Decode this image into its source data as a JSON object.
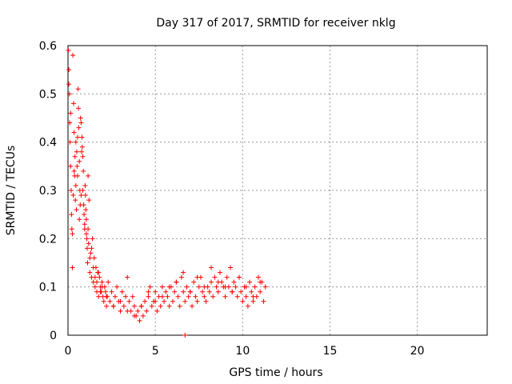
{
  "chart_data": {
    "type": "scatter",
    "title": "Day 317 of 2017, SRMTID for receiver nklg",
    "xlabel": "GPS time / hours",
    "ylabel": "SRMTID / TECUs",
    "xlim": [
      0,
      24
    ],
    "ylim": [
      0,
      0.6
    ],
    "xticks": [
      0,
      5,
      10,
      15,
      20
    ],
    "xtick_labels": [
      "0",
      "5",
      "10",
      "15",
      "20"
    ],
    "yticks": [
      0,
      0.1,
      0.2,
      0.3,
      0.4,
      0.5,
      0.6
    ],
    "ytick_labels": [
      "0",
      "0.1",
      "0.2",
      "0.3",
      "0.4",
      "0.5",
      "0.6"
    ],
    "grid": true,
    "marker": "+",
    "color": "#ff0000",
    "series": [
      {
        "name": "SRMTID",
        "x": [
          0.02,
          0.05,
          0.08,
          0.1,
          0.12,
          0.15,
          0.18,
          0.2,
          0.22,
          0.25,
          0.28,
          0.3,
          0.32,
          0.35,
          0.38,
          0.4,
          0.42,
          0.45,
          0.48,
          0.5,
          0.52,
          0.55,
          0.58,
          0.6,
          0.62,
          0.65,
          0.68,
          0.7,
          0.72,
          0.75,
          0.78,
          0.8,
          0.82,
          0.85,
          0.88,
          0.9,
          0.92,
          0.95,
          0.98,
          1.0,
          1.02,
          1.05,
          1.08,
          1.1,
          1.12,
          1.15,
          1.18,
          1.2,
          1.25,
          1.3,
          1.35,
          1.4,
          1.45,
          1.5,
          1.55,
          1.6,
          1.65,
          1.7,
          1.75,
          1.8,
          1.85,
          1.9,
          1.95,
          2.0,
          2.05,
          2.1,
          2.15,
          2.2,
          2.25,
          2.3,
          2.4,
          2.5,
          2.6,
          2.7,
          2.8,
          2.9,
          3.0,
          3.1,
          3.2,
          3.3,
          3.4,
          3.5,
          3.6,
          3.7,
          3.8,
          3.9,
          4.0,
          4.1,
          4.2,
          4.3,
          4.4,
          4.5,
          4.6,
          4.7,
          4.8,
          4.9,
          5.0,
          5.1,
          5.2,
          5.3,
          5.4,
          5.5,
          5.6,
          5.7,
          5.8,
          5.9,
          6.0,
          6.1,
          6.2,
          6.3,
          6.4,
          6.5,
          6.6,
          6.7,
          6.8,
          6.9,
          7.0,
          7.1,
          7.2,
          7.3,
          7.4,
          7.5,
          7.6,
          7.7,
          7.8,
          7.9,
          8.0,
          8.1,
          8.2,
          8.3,
          8.4,
          8.5,
          8.6,
          8.7,
          8.8,
          8.9,
          9.0,
          9.1,
          9.2,
          9.3,
          9.4,
          9.5,
          9.6,
          9.7,
          9.8,
          9.9,
          10.0,
          10.1,
          10.2,
          10.3,
          10.4,
          10.5,
          10.6,
          10.7,
          10.8,
          10.9,
          11.0,
          11.1,
          11.2,
          11.3,
          0.05,
          0.15,
          0.25,
          0.35,
          0.45,
          0.55,
          0.65,
          0.75,
          0.85,
          0.95,
          1.05,
          1.15,
          1.25,
          1.35,
          1.45,
          1.55,
          1.65,
          1.75,
          1.85,
          1.95,
          2.2,
          2.6,
          3.0,
          3.4,
          3.8,
          4.2,
          4.6,
          5.0,
          5.4,
          5.8,
          6.2,
          6.6,
          7.0,
          7.4,
          7.8,
          8.2,
          8.6,
          9.0,
          9.4,
          9.8,
          10.2,
          10.6,
          11.0,
          6.7
        ],
        "y": [
          0.59,
          0.55,
          0.5,
          0.44,
          0.4,
          0.35,
          0.3,
          0.25,
          0.22,
          0.14,
          0.58,
          0.29,
          0.48,
          0.42,
          0.33,
          0.37,
          0.28,
          0.31,
          0.26,
          0.38,
          0.35,
          0.41,
          0.51,
          0.47,
          0.43,
          0.36,
          0.3,
          0.27,
          0.45,
          0.44,
          0.38,
          0.41,
          0.39,
          0.3,
          0.34,
          0.27,
          0.25,
          0.22,
          0.31,
          0.29,
          0.26,
          0.24,
          0.2,
          0.18,
          0.15,
          0.22,
          0.19,
          0.28,
          0.13,
          0.17,
          0.12,
          0.2,
          0.11,
          0.16,
          0.1,
          0.14,
          0.09,
          0.13,
          0.08,
          0.12,
          0.1,
          0.09,
          0.11,
          0.08,
          0.07,
          0.1,
          0.09,
          0.06,
          0.08,
          0.11,
          0.07,
          0.09,
          0.06,
          0.08,
          0.1,
          0.07,
          0.05,
          0.09,
          0.06,
          0.08,
          0.12,
          0.07,
          0.05,
          0.08,
          0.06,
          0.04,
          0.05,
          0.03,
          0.06,
          0.04,
          0.07,
          0.05,
          0.08,
          0.1,
          0.06,
          0.07,
          0.09,
          0.05,
          0.08,
          0.06,
          0.1,
          0.07,
          0.09,
          0.08,
          0.06,
          0.1,
          0.07,
          0.09,
          0.11,
          0.08,
          0.06,
          0.12,
          0.09,
          0.07,
          0.1,
          0.08,
          0.09,
          0.06,
          0.11,
          0.08,
          0.07,
          0.1,
          0.12,
          0.09,
          0.08,
          0.07,
          0.1,
          0.09,
          0.11,
          0.08,
          0.12,
          0.1,
          0.09,
          0.13,
          0.11,
          0.1,
          0.08,
          0.12,
          0.1,
          0.14,
          0.09,
          0.11,
          0.1,
          0.08,
          0.12,
          0.09,
          0.07,
          0.1,
          0.08,
          0.06,
          0.11,
          0.09,
          0.07,
          0.1,
          0.08,
          0.12,
          0.09,
          0.11,
          0.07,
          0.1,
          0.52,
          0.46,
          0.21,
          0.34,
          0.4,
          0.33,
          0.24,
          0.29,
          0.37,
          0.23,
          0.21,
          0.33,
          0.16,
          0.18,
          0.14,
          0.12,
          0.11,
          0.13,
          0.09,
          0.1,
          0.08,
          0.06,
          0.07,
          0.05,
          0.04,
          0.06,
          0.09,
          0.07,
          0.08,
          0.1,
          0.11,
          0.13,
          0.09,
          0.12,
          0.1,
          0.14,
          0.11,
          0.1,
          0.09,
          0.12,
          0.1,
          0.08,
          0.11,
          0.0
        ]
      }
    ]
  }
}
